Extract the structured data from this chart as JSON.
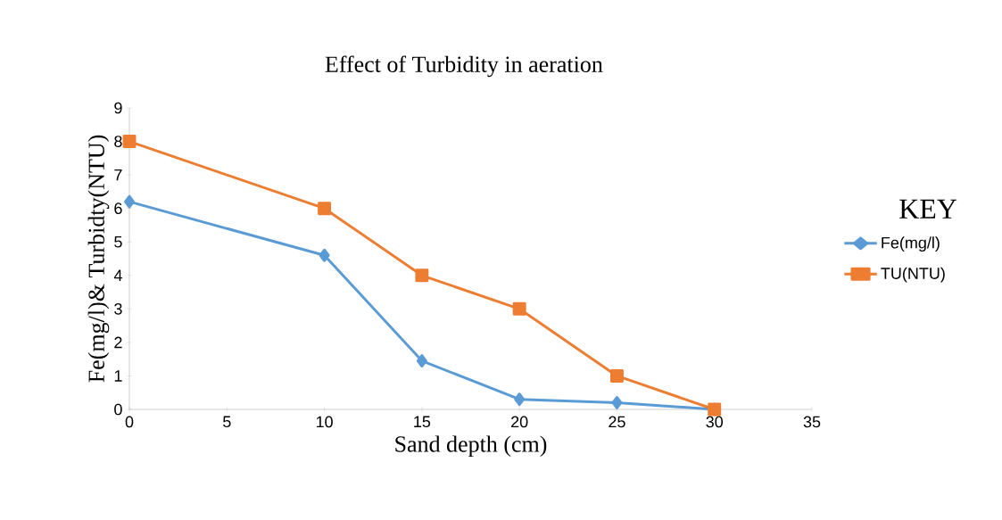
{
  "chart_data": {
    "type": "line",
    "title": "Effect of Turbidity in aeration",
    "xlabel": "Sand depth (cm)",
    "ylabel": "Fe(mg/l)& Turbidty(NTU)",
    "legend_title": "KEY",
    "legend": "right",
    "x": [
      0,
      10,
      15,
      20,
      25,
      30
    ],
    "series": [
      {
        "name": "Fe(mg/l)",
        "color": "#5b9bd5",
        "marker": "diamond",
        "values": [
          6.2,
          4.6,
          1.45,
          0.3,
          0.2,
          0
        ]
      },
      {
        "name": "TU(NTU)",
        "color": "#ed7d31",
        "marker": "square",
        "values": [
          8,
          6,
          4,
          3,
          1,
          0
        ]
      }
    ],
    "xlim": [
      0,
      35
    ],
    "ylim": [
      0,
      9
    ],
    "xticks": [
      0,
      5,
      10,
      15,
      20,
      25,
      30,
      35
    ],
    "yticks": [
      0,
      1,
      2,
      3,
      4,
      5,
      6,
      7,
      8,
      9
    ]
  }
}
